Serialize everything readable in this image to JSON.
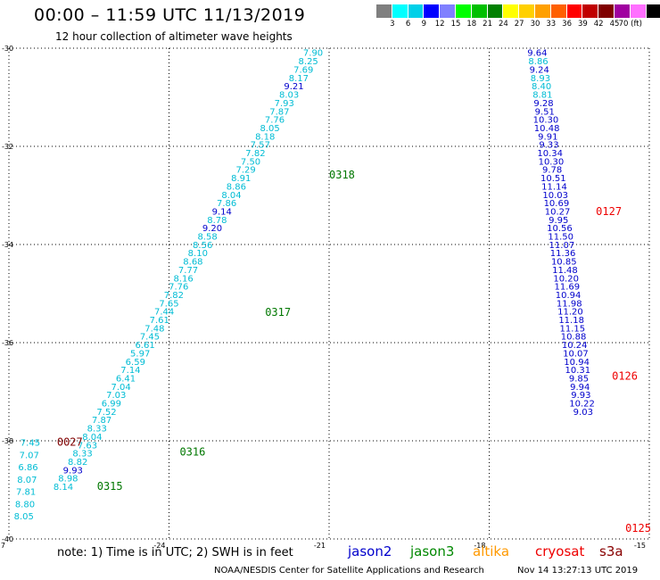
{
  "header": {
    "title": "00:00 – 11:59 UTC 11/13/2019",
    "subtitle": "12 hour collection of altimeter wave heights"
  },
  "colorbar": {
    "colors": [
      "#7f7f7f",
      "#00ffff",
      "#00d0e8",
      "#0000ff",
      "#8080ff",
      "#00ff00",
      "#00c000",
      "#008000",
      "#ffff00",
      "#ffd000",
      "#ffa000",
      "#ff6000",
      "#ff0000",
      "#c00000",
      "#800000",
      "#a000a0",
      "#ff70ff",
      "#000000"
    ],
    "labels": [
      "3",
      "6",
      "9",
      "12",
      "15",
      "18",
      "21",
      "24",
      "27",
      "30",
      "33",
      "36",
      "39",
      "42",
      "45",
      "70 (ft)"
    ]
  },
  "map": {
    "x_ticks": [
      "-27",
      "-24",
      "-21",
      "-18",
      "-15"
    ],
    "y_ticks": [
      "-30",
      "-32",
      "-34",
      "-36",
      "-38",
      "-40"
    ],
    "x_range": [
      -27,
      -15
    ],
    "y_range": [
      -40,
      -30
    ],
    "grid": "dotted",
    "tracks": [
      {
        "color": "#00bcd4",
        "label_color": "#007700",
        "points": [
          {
            "lon": -21.3,
            "lat": -30.15,
            "v": "7.90",
            "c": "#00bcd4"
          },
          {
            "lon": -21.39,
            "lat": -30.33,
            "v": "8.25",
            "c": "#00bcd4"
          },
          {
            "lon": -21.48,
            "lat": -30.5,
            "v": "7.69",
            "c": "#00bcd4"
          },
          {
            "lon": -21.57,
            "lat": -30.67,
            "v": "8.17",
            "c": "#00bcd4"
          },
          {
            "lon": -21.66,
            "lat": -30.84,
            "v": "9.21",
            "c": "#0000cc"
          },
          {
            "lon": -21.75,
            "lat": -31.01,
            "v": "8.03",
            "c": "#00bcd4"
          },
          {
            "lon": -21.84,
            "lat": -31.18,
            "v": "7.93",
            "c": "#00bcd4"
          },
          {
            "lon": -21.93,
            "lat": -31.35,
            "v": "7.87",
            "c": "#00bcd4"
          },
          {
            "lon": -22.02,
            "lat": -31.52,
            "v": "7.76",
            "c": "#00bcd4"
          },
          {
            "lon": -22.11,
            "lat": -31.69,
            "v": "8.05",
            "c": "#00bcd4"
          },
          {
            "lon": -22.2,
            "lat": -31.86,
            "v": "8.18",
            "c": "#00bcd4"
          },
          {
            "lon": -22.29,
            "lat": -32.03,
            "v": "7.57",
            "c": "#00bcd4"
          },
          {
            "lon": -22.38,
            "lat": -32.2,
            "v": "7.82",
            "c": "#00bcd4"
          },
          {
            "lon": -22.47,
            "lat": -32.37,
            "v": "7.50",
            "c": "#00bcd4"
          },
          {
            "lon": -22.56,
            "lat": -32.54,
            "v": "7.29",
            "c": "#00bcd4"
          },
          {
            "lon": -22.65,
            "lat": -32.71,
            "v": "8.91",
            "c": "#00bcd4"
          },
          {
            "lon": -22.74,
            "lat": -32.88,
            "v": "8.86",
            "c": "#00bcd4"
          },
          {
            "lon": -22.83,
            "lat": -33.05,
            "v": "8.04",
            "c": "#00bcd4"
          },
          {
            "lon": -22.92,
            "lat": -33.22,
            "v": "7.86",
            "c": "#00bcd4"
          },
          {
            "lon": -23.01,
            "lat": -33.39,
            "v": "9.14",
            "c": "#0000cc"
          },
          {
            "lon": -23.1,
            "lat": -33.56,
            "v": "8.78",
            "c": "#00bcd4"
          },
          {
            "lon": -23.19,
            "lat": -33.73,
            "v": "9.20",
            "c": "#0000cc"
          },
          {
            "lon": -23.28,
            "lat": -33.9,
            "v": "8.58",
            "c": "#00bcd4"
          },
          {
            "lon": -23.37,
            "lat": -34.07,
            "v": "8.56",
            "c": "#00bcd4"
          },
          {
            "lon": -23.46,
            "lat": -34.24,
            "v": "8.10",
            "c": "#00bcd4"
          },
          {
            "lon": -23.55,
            "lat": -34.41,
            "v": "8.68",
            "c": "#00bcd4"
          },
          {
            "lon": -23.64,
            "lat": -34.58,
            "v": "7.77",
            "c": "#00bcd4"
          },
          {
            "lon": -23.73,
            "lat": -34.75,
            "v": "8.16",
            "c": "#00bcd4"
          },
          {
            "lon": -23.82,
            "lat": -34.92,
            "v": "7.76",
            "c": "#00bcd4"
          },
          {
            "lon": -23.91,
            "lat": -35.09,
            "v": "7.82",
            "c": "#00bcd4"
          },
          {
            "lon": -24.0,
            "lat": -35.26,
            "v": "7.65",
            "c": "#00bcd4"
          },
          {
            "lon": -24.09,
            "lat": -35.43,
            "v": "7.44",
            "c": "#00bcd4"
          },
          {
            "lon": -24.18,
            "lat": -35.6,
            "v": "7.61",
            "c": "#00bcd4"
          },
          {
            "lon": -24.27,
            "lat": -35.77,
            "v": "7.48",
            "c": "#00bcd4"
          },
          {
            "lon": -24.36,
            "lat": -35.94,
            "v": "7.45",
            "c": "#00bcd4"
          },
          {
            "lon": -24.45,
            "lat": -36.11,
            "v": "6.61",
            "c": "#00bcd4"
          },
          {
            "lon": -24.54,
            "lat": -36.28,
            "v": "5.97",
            "c": "#00bcd4"
          },
          {
            "lon": -24.63,
            "lat": -36.45,
            "v": "6.59",
            "c": "#00bcd4"
          },
          {
            "lon": -24.72,
            "lat": -36.62,
            "v": "7.14",
            "c": "#00bcd4"
          },
          {
            "lon": -24.81,
            "lat": -36.79,
            "v": "6.41",
            "c": "#00bcd4"
          },
          {
            "lon": -24.9,
            "lat": -36.96,
            "v": "7.04",
            "c": "#00bcd4"
          },
          {
            "lon": -24.99,
            "lat": -37.13,
            "v": "7.03",
            "c": "#00bcd4"
          },
          {
            "lon": -25.08,
            "lat": -37.3,
            "v": "6.99",
            "c": "#00bcd4"
          },
          {
            "lon": -25.17,
            "lat": -37.47,
            "v": "7.52",
            "c": "#00bcd4"
          },
          {
            "lon": -25.26,
            "lat": -37.64,
            "v": "7.87",
            "c": "#00bcd4"
          },
          {
            "lon": -25.35,
            "lat": -37.81,
            "v": "8.33",
            "c": "#00bcd4"
          },
          {
            "lon": -25.44,
            "lat": -37.98,
            "v": "8.04",
            "c": "#00bcd4"
          },
          {
            "lon": -25.53,
            "lat": -38.15,
            "v": "7.63",
            "c": "#00bcd4"
          },
          {
            "lon": -25.62,
            "lat": -38.32,
            "v": "8.33",
            "c": "#00bcd4"
          },
          {
            "lon": -25.71,
            "lat": -38.49,
            "v": "8.82",
            "c": "#00bcd4"
          },
          {
            "lon": -25.8,
            "lat": -38.66,
            "v": "9.93",
            "c": "#0000cc"
          },
          {
            "lon": -25.89,
            "lat": -38.83,
            "v": "8.98",
            "c": "#00bcd4"
          },
          {
            "lon": -25.98,
            "lat": -39.0,
            "v": "8.14",
            "c": "#00bcd4"
          }
        ],
        "time_labels": [
          {
            "lon": -21.0,
            "lat": -32.65,
            "t": "0318"
          },
          {
            "lon": -22.2,
            "lat": -35.45,
            "t": "0317"
          },
          {
            "lon": -23.8,
            "lat": -38.3,
            "t": "0316"
          },
          {
            "lon": -25.35,
            "lat": -39.0,
            "t": "0315"
          }
        ]
      },
      {
        "label_color": "#ee0000",
        "points": [
          {
            "lon": -17.1,
            "lat": -30.15,
            "v": "9.64",
            "c": "#0000cc"
          },
          {
            "lon": -17.08,
            "lat": -30.33,
            "v": "8.86",
            "c": "#00bcd4"
          },
          {
            "lon": -17.06,
            "lat": -30.5,
            "v": "9.24",
            "c": "#0000cc"
          },
          {
            "lon": -17.04,
            "lat": -30.67,
            "v": "8.93",
            "c": "#00bcd4"
          },
          {
            "lon": -17.02,
            "lat": -30.84,
            "v": "8.40",
            "c": "#00bcd4"
          },
          {
            "lon": -17.0,
            "lat": -31.01,
            "v": "8.81",
            "c": "#00bcd4"
          },
          {
            "lon": -16.98,
            "lat": -31.18,
            "v": "9.28",
            "c": "#0000cc"
          },
          {
            "lon": -16.96,
            "lat": -31.35,
            "v": "9.51",
            "c": "#0000cc"
          },
          {
            "lon": -16.94,
            "lat": -31.52,
            "v": "10.30",
            "c": "#0000cc"
          },
          {
            "lon": -16.92,
            "lat": -31.69,
            "v": "10.48",
            "c": "#0000cc"
          },
          {
            "lon": -16.9,
            "lat": -31.86,
            "v": "9.91",
            "c": "#0000cc"
          },
          {
            "lon": -16.88,
            "lat": -32.03,
            "v": "9.33",
            "c": "#0000cc"
          },
          {
            "lon": -16.86,
            "lat": -32.2,
            "v": "10.34",
            "c": "#0000cc"
          },
          {
            "lon": -16.84,
            "lat": -32.37,
            "v": "10.30",
            "c": "#0000cc"
          },
          {
            "lon": -16.82,
            "lat": -32.54,
            "v": "9.78",
            "c": "#0000cc"
          },
          {
            "lon": -16.8,
            "lat": -32.71,
            "v": "10.51",
            "c": "#0000cc"
          },
          {
            "lon": -16.78,
            "lat": -32.88,
            "v": "11.14",
            "c": "#0000cc"
          },
          {
            "lon": -16.76,
            "lat": -33.05,
            "v": "10.03",
            "c": "#0000cc"
          },
          {
            "lon": -16.74,
            "lat": -33.22,
            "v": "10.69",
            "c": "#0000cc"
          },
          {
            "lon": -16.72,
            "lat": -33.39,
            "v": "10.27",
            "c": "#0000cc"
          },
          {
            "lon": -16.7,
            "lat": -33.56,
            "v": "9.95",
            "c": "#0000cc"
          },
          {
            "lon": -16.68,
            "lat": -33.73,
            "v": "10.56",
            "c": "#0000cc"
          },
          {
            "lon": -16.66,
            "lat": -33.9,
            "v": "11.50",
            "c": "#0000cc"
          },
          {
            "lon": -16.64,
            "lat": -34.07,
            "v": "11.07",
            "c": "#0000cc"
          },
          {
            "lon": -16.62,
            "lat": -34.24,
            "v": "11.36",
            "c": "#0000cc"
          },
          {
            "lon": -16.6,
            "lat": -34.41,
            "v": "10.85",
            "c": "#0000cc"
          },
          {
            "lon": -16.58,
            "lat": -34.58,
            "v": "11.48",
            "c": "#0000cc"
          },
          {
            "lon": -16.56,
            "lat": -34.75,
            "v": "10.20",
            "c": "#0000cc"
          },
          {
            "lon": -16.54,
            "lat": -34.92,
            "v": "11.69",
            "c": "#0000cc"
          },
          {
            "lon": -16.52,
            "lat": -35.09,
            "v": "10.94",
            "c": "#0000cc"
          },
          {
            "lon": -16.5,
            "lat": -35.26,
            "v": "11.98",
            "c": "#0000cc"
          },
          {
            "lon": -16.48,
            "lat": -35.43,
            "v": "11.20",
            "c": "#0000cc"
          },
          {
            "lon": -16.46,
            "lat": -35.6,
            "v": "11.18",
            "c": "#0000cc"
          },
          {
            "lon": -16.44,
            "lat": -35.77,
            "v": "11.15",
            "c": "#0000cc"
          },
          {
            "lon": -16.42,
            "lat": -35.94,
            "v": "10.88",
            "c": "#0000cc"
          },
          {
            "lon": -16.4,
            "lat": -36.11,
            "v": "10.24",
            "c": "#0000cc"
          },
          {
            "lon": -16.38,
            "lat": -36.28,
            "v": "10.07",
            "c": "#0000cc"
          },
          {
            "lon": -16.36,
            "lat": -36.45,
            "v": "10.94",
            "c": "#0000cc"
          },
          {
            "lon": -16.34,
            "lat": -36.62,
            "v": "10.31",
            "c": "#0000cc"
          },
          {
            "lon": -16.32,
            "lat": -36.79,
            "v": "9.85",
            "c": "#0000cc"
          },
          {
            "lon": -16.3,
            "lat": -36.96,
            "v": "9.94",
            "c": "#0000cc"
          },
          {
            "lon": -16.28,
            "lat": -37.13,
            "v": "9.93",
            "c": "#0000cc"
          },
          {
            "lon": -16.26,
            "lat": -37.3,
            "v": "10.22",
            "c": "#0000cc"
          },
          {
            "lon": -16.24,
            "lat": -37.47,
            "v": "9.03",
            "c": "#0000cc"
          }
        ],
        "time_labels": [
          {
            "lon": -16.0,
            "lat": -33.4,
            "t": "0127"
          },
          {
            "lon": -15.7,
            "lat": -36.75,
            "t": "0126"
          },
          {
            "lon": -15.45,
            "lat": -39.85,
            "t": "0125"
          }
        ]
      },
      {
        "label_color": "#800000",
        "points": [
          {
            "lon": -26.6,
            "lat": -38.1,
            "v": "7.45",
            "c": "#00bcd4"
          },
          {
            "lon": -26.62,
            "lat": -38.35,
            "v": "7.07",
            "c": "#00bcd4"
          },
          {
            "lon": -26.64,
            "lat": -38.6,
            "v": "6.86",
            "c": "#00bcd4"
          },
          {
            "lon": -26.66,
            "lat": -38.85,
            "v": "8.07",
            "c": "#00bcd4"
          },
          {
            "lon": -26.68,
            "lat": -39.1,
            "v": "7.81",
            "c": "#00bcd4"
          },
          {
            "lon": -26.7,
            "lat": -39.35,
            "v": "8.80",
            "c": "#00bcd4"
          },
          {
            "lon": -26.72,
            "lat": -39.6,
            "v": "8.05",
            "c": "#00bcd4"
          }
        ],
        "time_labels": [
          {
            "lon": -26.1,
            "lat": -38.1,
            "t": "0027"
          }
        ]
      }
    ]
  },
  "footer": {
    "note": "note: 1) Time is in UTC; 2) SWH is in feet",
    "legend": [
      {
        "label": "jason2",
        "color": "#0000cc"
      },
      {
        "label": "jason3",
        "color": "#008800"
      },
      {
        "label": "altika",
        "color": "#ff9900"
      },
      {
        "label": "cryosat",
        "color": "#ee0000"
      },
      {
        "label": "s3a",
        "color": "#880000"
      }
    ],
    "credit": "NOAA/NESDIS Center for Satellite Applications and Research",
    "timestamp": "Nov 14 13:27:13 UTC 2019"
  }
}
